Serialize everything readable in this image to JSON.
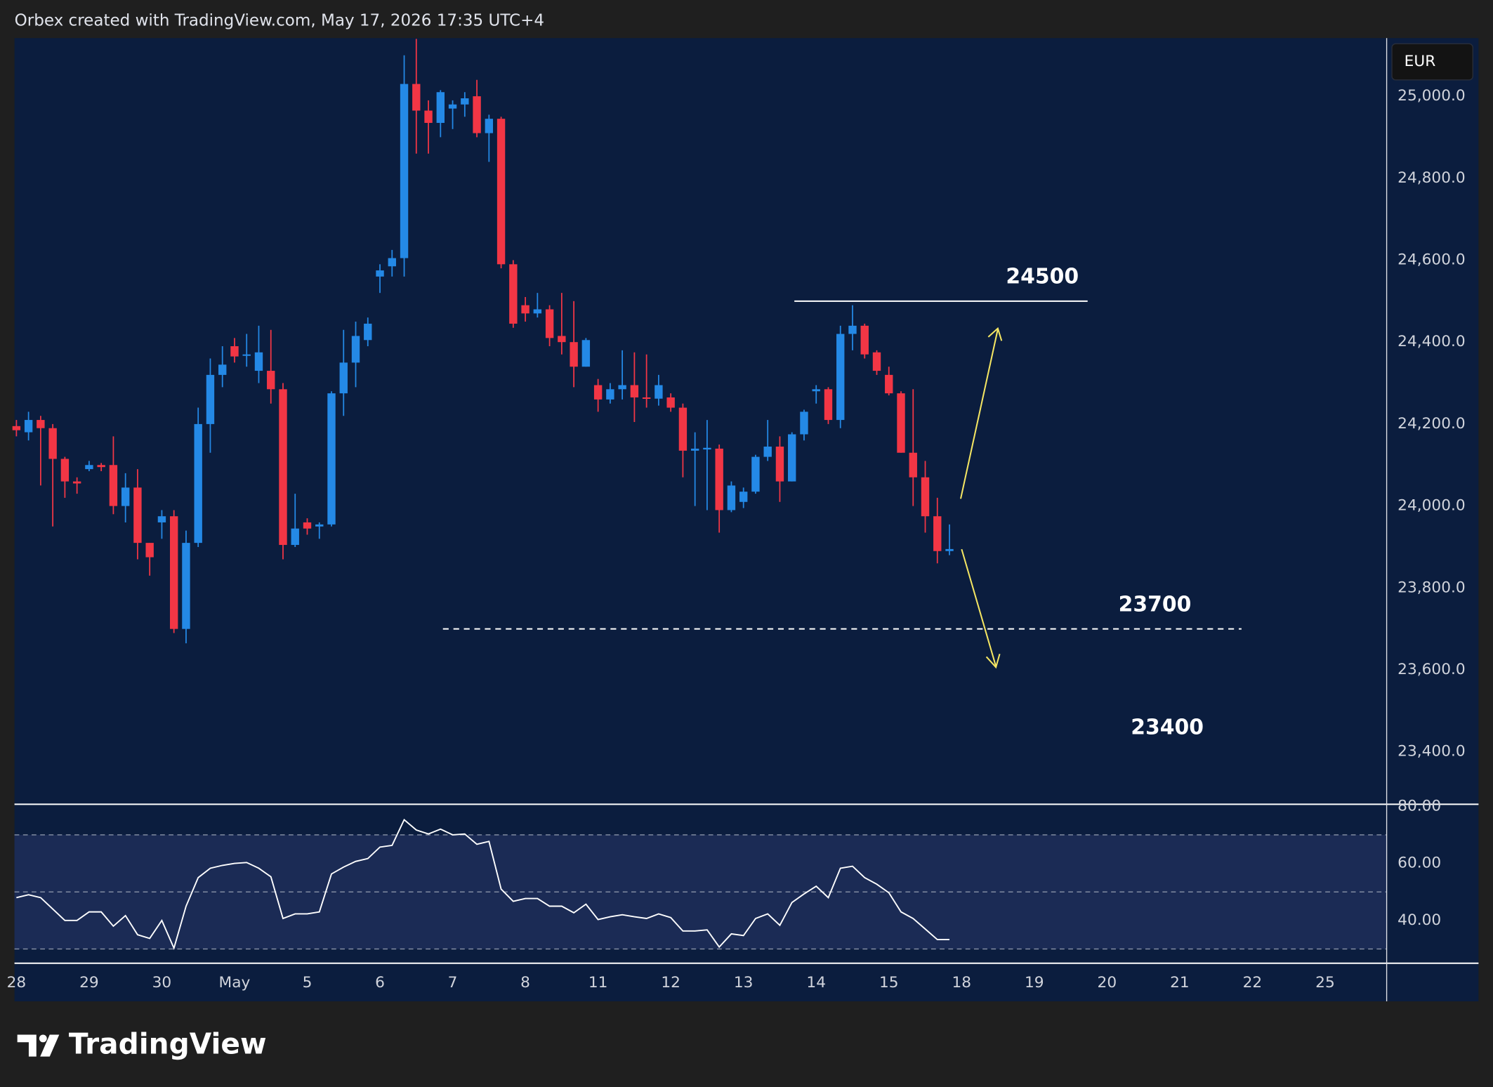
{
  "chart_data": [
    {
      "type": "candlestick",
      "title": "Orbex created with TradingView.com, May 17, 2026 17:35 UTC+4",
      "currency": "EUR",
      "brand": "TradingView",
      "up_color": "#2489e6",
      "down_color": "#f23645",
      "open": [
        24195,
        24180,
        24210,
        24190,
        24115,
        24060,
        24090,
        24100,
        24100,
        24000,
        24045,
        23910,
        23960,
        23975,
        23700,
        23910,
        24200,
        24320,
        24390,
        24370,
        24330,
        24330,
        24285,
        23905,
        23960,
        23950,
        23955,
        24275,
        24350,
        24405,
        24560,
        24585,
        24605,
        25030,
        24965,
        24935,
        24970,
        24980,
        25000,
        24910,
        24945,
        24590,
        24490,
        24470,
        24480,
        24415,
        24400,
        24340,
        24295,
        24260,
        24285,
        24295,
        24265,
        24262,
        24265,
        24240,
        24135,
        24138,
        24140,
        23990,
        24010,
        24035,
        24120,
        24145,
        24060,
        24175,
        24280,
        24285,
        24210,
        24420,
        24440,
        24375,
        24320,
        24275,
        24130,
        24070,
        23975,
        23890
      ],
      "high": [
        24210,
        24230,
        24220,
        24200,
        24120,
        24070,
        24110,
        24105,
        24170,
        24080,
        24090,
        23910,
        23990,
        23990,
        23940,
        24240,
        24360,
        24390,
        24410,
        24420,
        24440,
        24430,
        24300,
        24030,
        23970,
        23960,
        24280,
        24430,
        24450,
        24460,
        24590,
        24625,
        25100,
        25140,
        24990,
        25015,
        24990,
        25010,
        25040,
        24955,
        24950,
        24600,
        24510,
        24520,
        24490,
        24520,
        24500,
        24410,
        24310,
        24300,
        24380,
        24375,
        24370,
        24320,
        24275,
        24250,
        24180,
        24210,
        24150,
        24060,
        24045,
        24125,
        24210,
        24170,
        24180,
        24235,
        24295,
        24290,
        24440,
        24490,
        24445,
        24380,
        24340,
        24280,
        24285,
        24110,
        24020,
        23955
      ],
      "low": [
        24170,
        24160,
        24050,
        23950,
        24020,
        24030,
        24085,
        24085,
        23980,
        23960,
        23870,
        23830,
        23920,
        23690,
        23665,
        23900,
        24130,
        24290,
        24350,
        24340,
        24300,
        24250,
        23870,
        23900,
        23930,
        23920,
        23950,
        24220,
        24290,
        24390,
        24520,
        24560,
        24560,
        24860,
        24860,
        24900,
        24920,
        24950,
        24900,
        24840,
        24580,
        24435,
        24450,
        24460,
        24390,
        24370,
        24290,
        24340,
        24230,
        24250,
        24260,
        24205,
        24240,
        24245,
        24230,
        24070,
        24000,
        23990,
        23935,
        23985,
        23995,
        24030,
        24110,
        24010,
        24060,
        24160,
        24250,
        24200,
        24190,
        24380,
        24360,
        24320,
        24270,
        24130,
        24000,
        23935,
        23860,
        23880
      ],
      "close": [
        24185,
        24210,
        24190,
        24115,
        24060,
        24055,
        24100,
        24095,
        24000,
        24045,
        23910,
        23875,
        23975,
        23700,
        23910,
        24200,
        24320,
        24345,
        24365,
        24370,
        24375,
        24285,
        23905,
        23945,
        23945,
        23955,
        24275,
        24350,
        24415,
        24445,
        24575,
        24605,
        25030,
        24965,
        24935,
        25010,
        24980,
        24995,
        24910,
        24945,
        24590,
        24445,
        24470,
        24480,
        24410,
        24400,
        24340,
        24405,
        24260,
        24285,
        24295,
        24265,
        24262,
        24295,
        24240,
        24135,
        24140,
        24142,
        23990,
        24050,
        24035,
        24120,
        24145,
        24060,
        24175,
        24230,
        24285,
        24210,
        24420,
        24440,
        24370,
        24330,
        24275,
        24130,
        24070,
        23975,
        23890,
        23895
      ],
      "ylim": [
        23272,
        25142
      ],
      "yticks": [
        {
          "value": 23400,
          "label": "23,400.0"
        },
        {
          "value": 23600,
          "label": "23,600.0"
        },
        {
          "value": 23800,
          "label": "23,800.0"
        },
        {
          "value": 24000,
          "label": "24,000.0"
        },
        {
          "value": 24200,
          "label": "24,200.0"
        },
        {
          "value": 24400,
          "label": "24,400.0"
        },
        {
          "value": 24600,
          "label": "24,600.0"
        },
        {
          "value": 24800,
          "label": "24,800.0"
        },
        {
          "value": 25000,
          "label": "25,000.0"
        }
      ],
      "xlim": [
        -0.16,
        113.04
      ],
      "xticks": [
        {
          "value": 0,
          "label": "28"
        },
        {
          "value": 6,
          "label": "29"
        },
        {
          "value": 12,
          "label": "30"
        },
        {
          "value": 18,
          "label": "May"
        },
        {
          "value": 24,
          "label": "5"
        },
        {
          "value": 30,
          "label": "6"
        },
        {
          "value": 36,
          "label": "7"
        },
        {
          "value": 42,
          "label": "8"
        },
        {
          "value": 48,
          "label": "11"
        },
        {
          "value": 54,
          "label": "12"
        },
        {
          "value": 60,
          "label": "13"
        },
        {
          "value": 66,
          "label": "14"
        },
        {
          "value": 72,
          "label": "15"
        },
        {
          "value": 78,
          "label": "18"
        },
        {
          "value": 84,
          "label": "19"
        },
        {
          "value": 90,
          "label": "20"
        },
        {
          "value": 96,
          "label": "21"
        },
        {
          "value": 102,
          "label": "22"
        },
        {
          "value": 108,
          "label": "25"
        }
      ],
      "levels": [
        {
          "value": 24500,
          "label": "24500",
          "style": "solid"
        },
        {
          "value": 23700,
          "label": "23700",
          "style": "dashed"
        },
        {
          "value": 23400,
          "label": "23400",
          "style": "none"
        }
      ]
    },
    {
      "type": "line",
      "color": "#ffffff",
      "values": [
        48,
        49,
        48,
        44,
        40,
        40,
        43,
        43,
        38,
        41.7,
        35,
        33.7,
        40,
        30.3,
        45,
        55,
        58.3,
        59.3,
        60,
        60.3,
        58.3,
        55.3,
        40.7,
        42.3,
        42.3,
        43,
        56.3,
        58.7,
        60.7,
        61.7,
        65.7,
        66.3,
        75.3,
        71.7,
        70.3,
        72,
        70,
        70.3,
        66.7,
        67.7,
        51,
        46.7,
        47.7,
        47.7,
        45,
        45,
        42.7,
        45.7,
        40.3,
        41.3,
        42,
        41.3,
        40.7,
        42.3,
        41,
        36.3,
        36.3,
        36.7,
        30.7,
        35.3,
        34.7,
        40.7,
        42.3,
        38.3,
        46.3,
        49.3,
        52,
        48,
        58.3,
        59,
        55,
        52.7,
        49.7,
        43,
        40.7,
        37,
        33.3,
        33.3
      ],
      "ylim": [
        25,
        80.7
      ],
      "yticks": [
        {
          "value": 40,
          "label": "40.00"
        },
        {
          "value": 60,
          "label": "60.00"
        },
        {
          "value": 80,
          "label": "80.00"
        }
      ],
      "bands": [
        30,
        50,
        70
      ]
    }
  ]
}
